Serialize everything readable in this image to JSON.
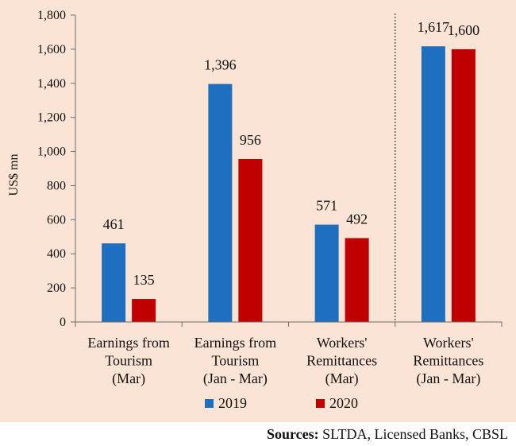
{
  "colors": {
    "background": "#FBE4D5",
    "series_2019": "#1F6FC0",
    "series_2020": "#C00000"
  },
  "source": {
    "label": "Sources:",
    "text": " SLTDA, Licensed Banks, CBSL"
  },
  "chart_data": {
    "type": "bar",
    "ylabel": "US$ mn",
    "ylim": [
      0,
      1800
    ],
    "yticks": [
      0,
      200,
      400,
      600,
      800,
      1000,
      1200,
      1400,
      1600,
      1800
    ],
    "ytick_labels": [
      "0",
      "200",
      "400",
      "600",
      "800",
      "1,000",
      "1,200",
      "1,400",
      "1,600",
      "1,800"
    ],
    "categories": [
      [
        "Earnings from",
        "Tourism",
        "(Mar)"
      ],
      [
        "Earnings from",
        "Tourism",
        "(Jan - Mar)"
      ],
      [
        "Workers'",
        "Remittances",
        "(Mar)"
      ],
      [
        "Workers'",
        "Remittances",
        "(Jan - Mar)"
      ]
    ],
    "series": [
      {
        "name": "2019",
        "values": [
          461,
          1396,
          571,
          1617
        ],
        "labels": [
          "461",
          "1,396",
          "571",
          "1,617"
        ]
      },
      {
        "name": "2020",
        "values": [
          135,
          956,
          492,
          1600
        ],
        "labels": [
          "135",
          "956",
          "492",
          "1,600"
        ]
      }
    ],
    "legend_position": "bottom",
    "divider_between_categories": [
      2,
      3
    ],
    "grid": false
  }
}
